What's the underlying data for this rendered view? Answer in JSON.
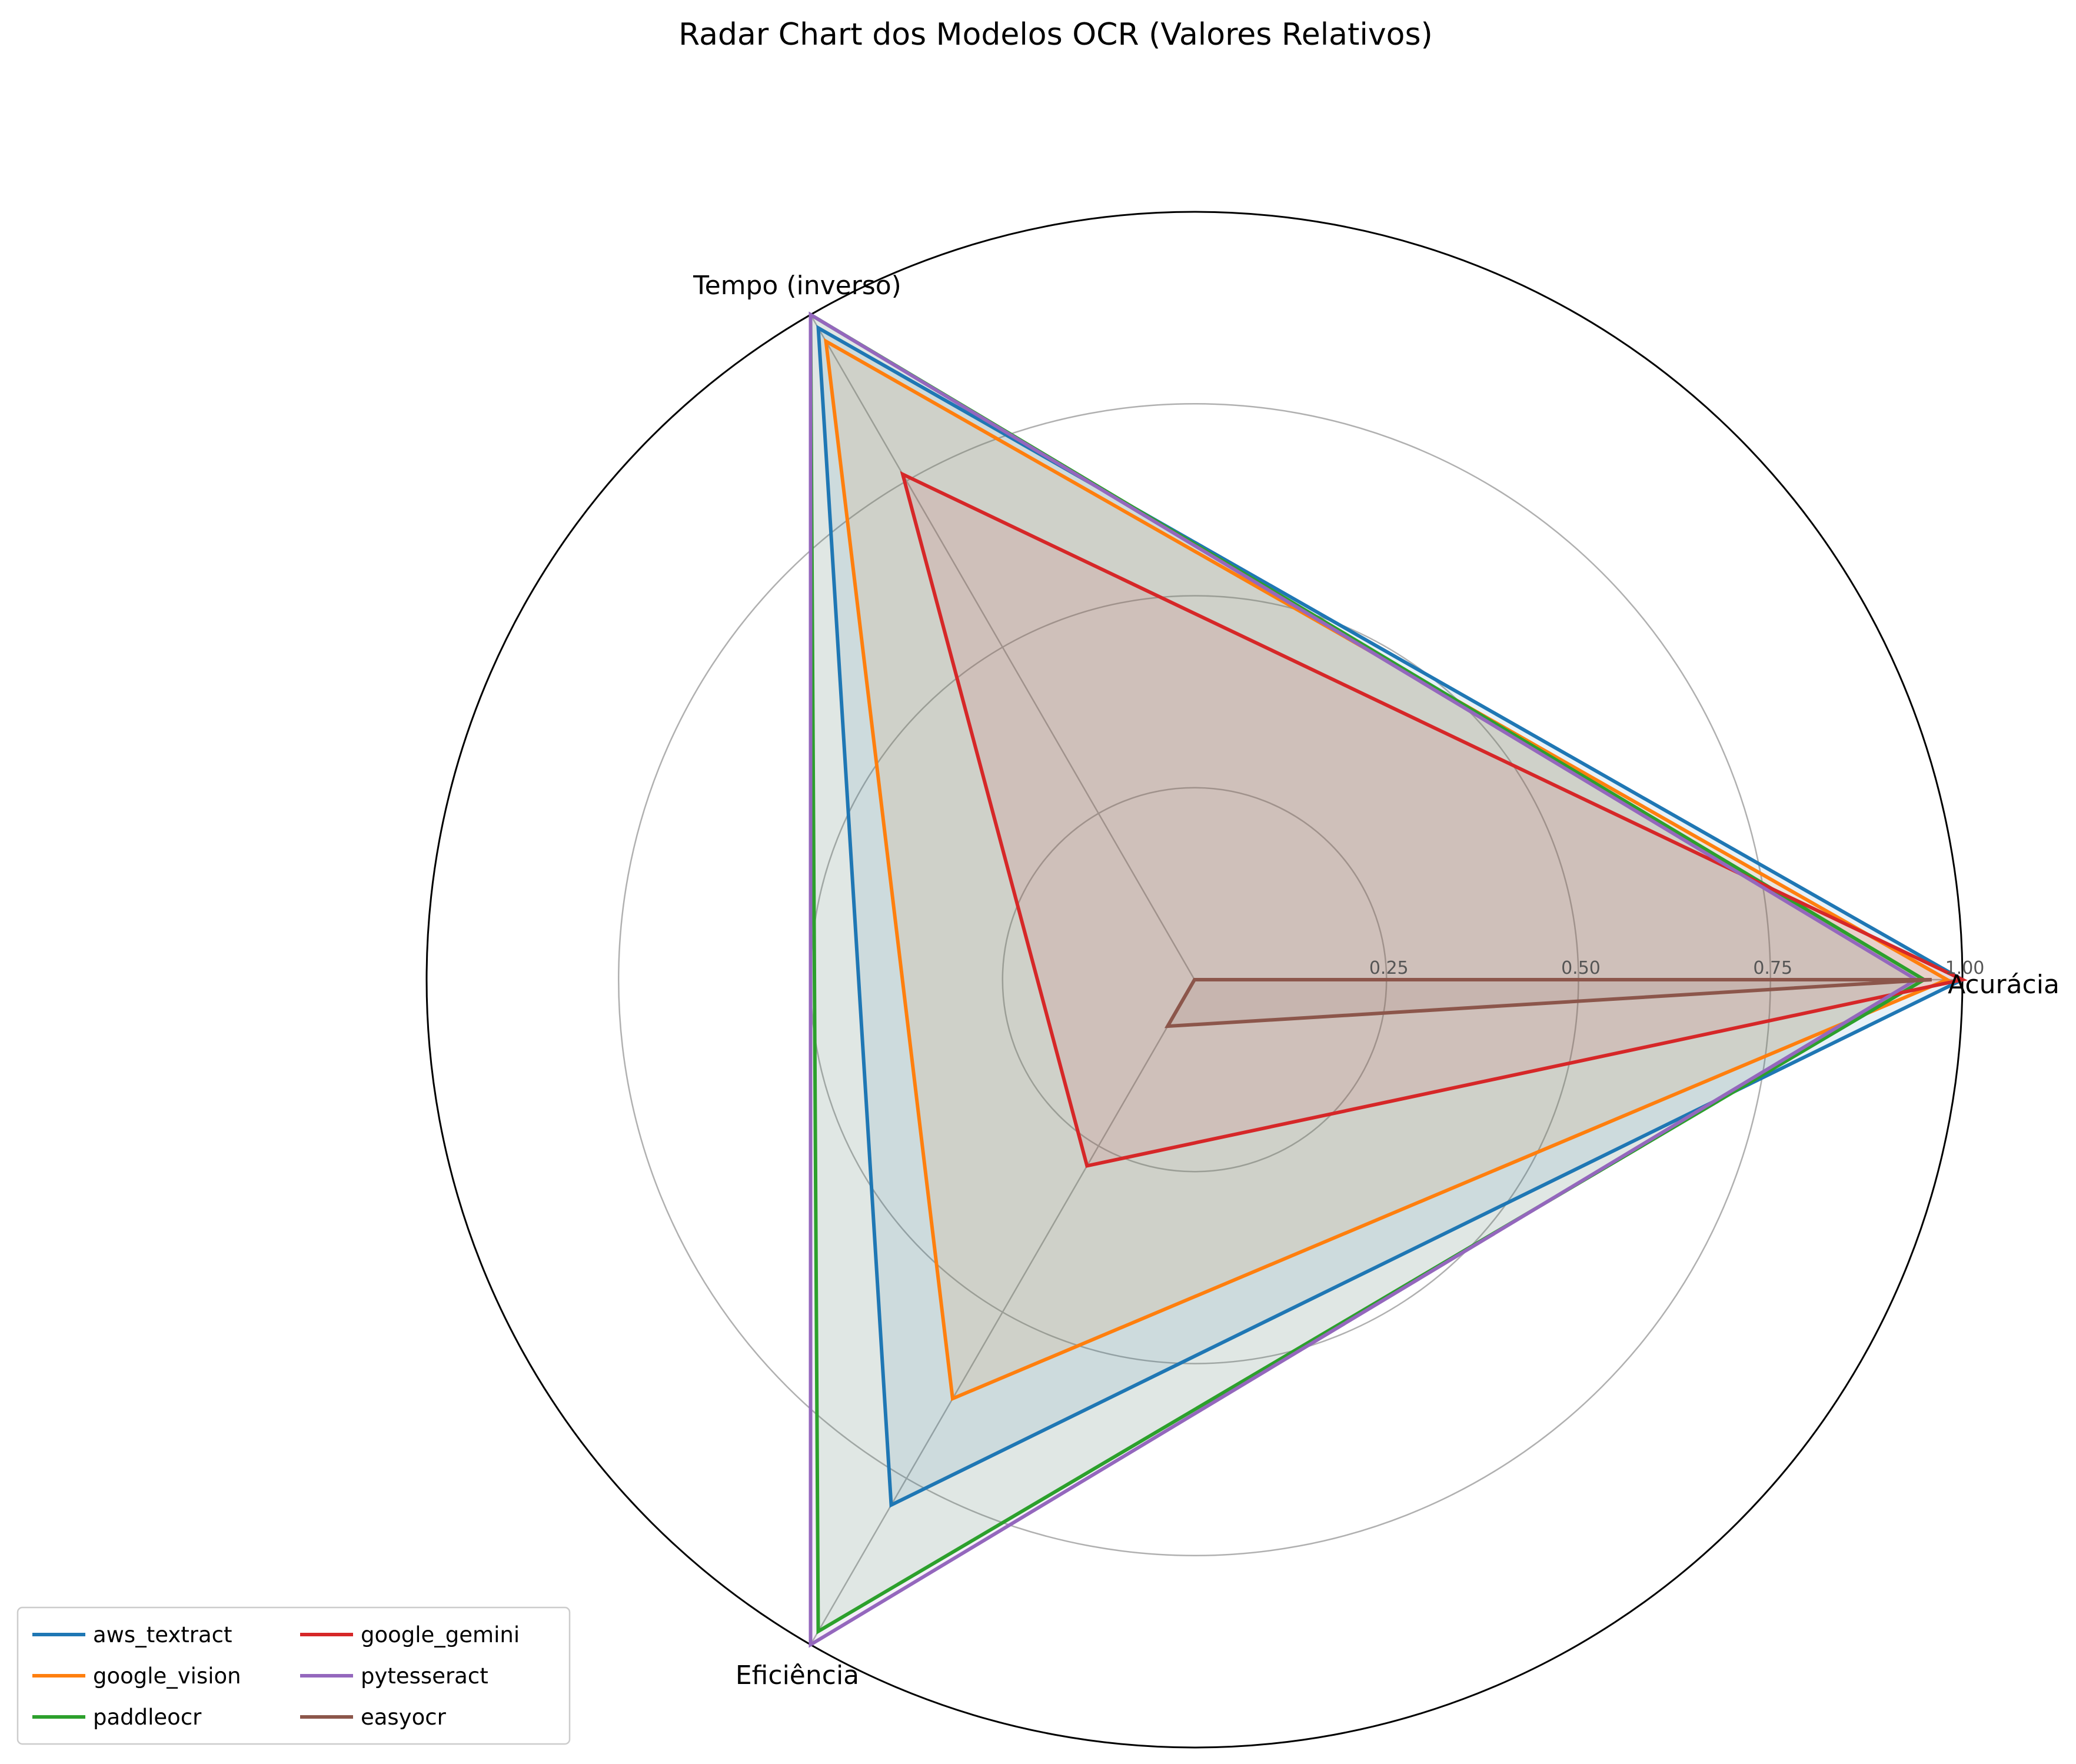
{
  "chart_data": {
    "type": "radar",
    "title": "Radar Chart dos Modelos OCR (Valores Relativos)",
    "axes": [
      "Acurácia",
      "Tempo (inverso)",
      "Eficiência"
    ],
    "rlim": [
      0,
      1
    ],
    "rticks": [
      0.25,
      0.5,
      0.75,
      1.0
    ],
    "rtick_labels": [
      "0.25",
      "0.50",
      "0.75",
      "1.00"
    ],
    "grid": true,
    "legend_position": "lower-left",
    "series": [
      {
        "name": "aws_textract",
        "color": "#1f77b4",
        "values": [
          1.0,
          0.98,
          0.79
        ]
      },
      {
        "name": "google_vision",
        "color": "#ff7f0e",
        "values": [
          0.98,
          0.96,
          0.63
        ]
      },
      {
        "name": "paddleocr",
        "color": "#2ca02c",
        "values": [
          0.95,
          1.0,
          0.98
        ]
      },
      {
        "name": "google_gemini",
        "color": "#d62728",
        "values": [
          1.0,
          0.76,
          0.28
        ]
      },
      {
        "name": "pytesseract",
        "color": "#9467bd",
        "values": [
          0.94,
          1.0,
          1.0
        ]
      },
      {
        "name": "easyocr",
        "color": "#8c564b",
        "values": [
          0.96,
          0.0,
          0.07
        ]
      }
    ]
  }
}
